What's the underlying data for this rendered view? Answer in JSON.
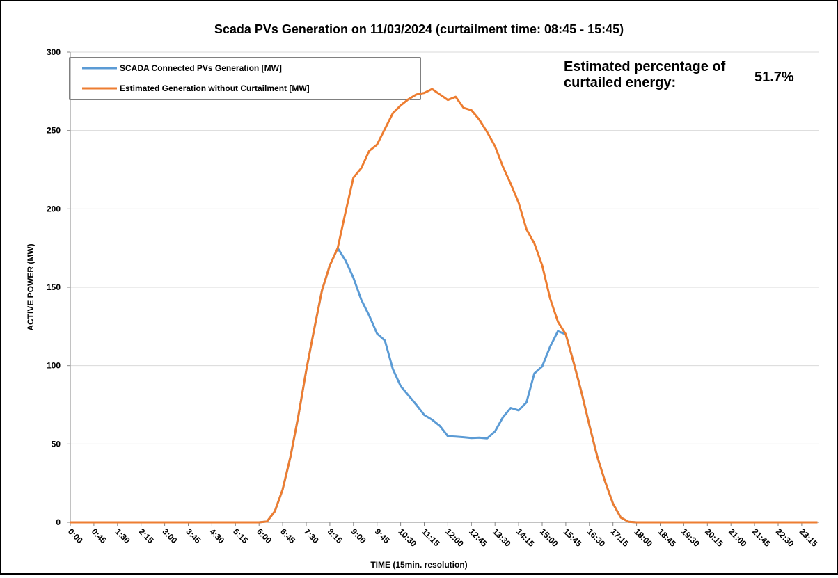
{
  "chart_data": {
    "type": "line",
    "title": "Scada PVs Generation on 11/03/2024 (curtailment time: 08:45 - 15:45)",
    "x_label": "TIME (15min. resolution)",
    "y_label": "ACTIVE POWER (MW)",
    "annotation": "Estimated percentage of curtailed energy:",
    "annotation_value": "51.7%",
    "categories": [
      "0:00",
      null,
      null,
      "0:45",
      null,
      null,
      "1:30",
      null,
      null,
      "2:15",
      null,
      null,
      "3:00",
      null,
      null,
      "3:45",
      null,
      null,
      "4:30",
      null,
      null,
      "5:15",
      null,
      null,
      "6:00",
      null,
      null,
      "6:45",
      null,
      null,
      "7:30",
      null,
      null,
      "8:15",
      null,
      null,
      "9:00",
      null,
      null,
      "9:45",
      null,
      null,
      "10:30",
      null,
      null,
      "11:15",
      null,
      null,
      "12:00",
      null,
      null,
      "12:45",
      null,
      null,
      "13:30",
      null,
      null,
      "14:15",
      null,
      null,
      "15:00",
      null,
      null,
      "15:45",
      null,
      null,
      "16:30",
      null,
      null,
      "17:15",
      null,
      null,
      "18:00",
      null,
      null,
      "18:45",
      null,
      null,
      "19:30",
      null,
      null,
      "20:15",
      null,
      null,
      "21:00",
      null,
      null,
      "21:45",
      null,
      null,
      "22:30",
      null,
      null,
      "23:15",
      null,
      null
    ],
    "series": [
      {
        "name": "SCADA Connected PVs Generation [MW]",
        "color": "#5b9bd5",
        "values": [
          0,
          0,
          0,
          0,
          0,
          0,
          0,
          0,
          0,
          0,
          0,
          0,
          0,
          0,
          0,
          0,
          0,
          0,
          0,
          0,
          0,
          0,
          0,
          0,
          0,
          0.5,
          7,
          21,
          42,
          68,
          97,
          123,
          148,
          164,
          175,
          167,
          156,
          142,
          132,
          120.5,
          116,
          98,
          87,
          81,
          75,
          68.5,
          65.5,
          61.5,
          55,
          54.7,
          54.3,
          53.8,
          54,
          53.6,
          58,
          67,
          73,
          71.5,
          76.5,
          95,
          99.5,
          112,
          122,
          120,
          102,
          83,
          62,
          42,
          26,
          12,
          3,
          0.3,
          0,
          0,
          0,
          0,
          0,
          0,
          0,
          0,
          0,
          0,
          0,
          0,
          0,
          0,
          0,
          0,
          0,
          0,
          0,
          0,
          0,
          0,
          0,
          0
        ]
      },
      {
        "name": "Estimated Generation without Curtailment [MW]",
        "color": "#ed7d31",
        "values": [
          0,
          0,
          0,
          0,
          0,
          0,
          0,
          0,
          0,
          0,
          0,
          0,
          0,
          0,
          0,
          0,
          0,
          0,
          0,
          0,
          0,
          0,
          0,
          0,
          0,
          0.5,
          7,
          21,
          42,
          68,
          97,
          123,
          148,
          164,
          175,
          198,
          220,
          226,
          237,
          241,
          251,
          261,
          266,
          270,
          273,
          274,
          276.5,
          273,
          269.5,
          271.5,
          264.5,
          263,
          257,
          249,
          240,
          227,
          216,
          204,
          187,
          178,
          164,
          143,
          128,
          120,
          102,
          83,
          62,
          42,
          26,
          12,
          3,
          0.3,
          0,
          0,
          0,
          0,
          0,
          0,
          0,
          0,
          0,
          0,
          0,
          0,
          0,
          0,
          0,
          0,
          0,
          0,
          0,
          0,
          0,
          0,
          0,
          0
        ]
      }
    ],
    "ylim": [
      0,
      300
    ],
    "yticks": [
      0,
      50,
      100,
      150,
      200,
      250,
      300
    ],
    "grid": true
  }
}
